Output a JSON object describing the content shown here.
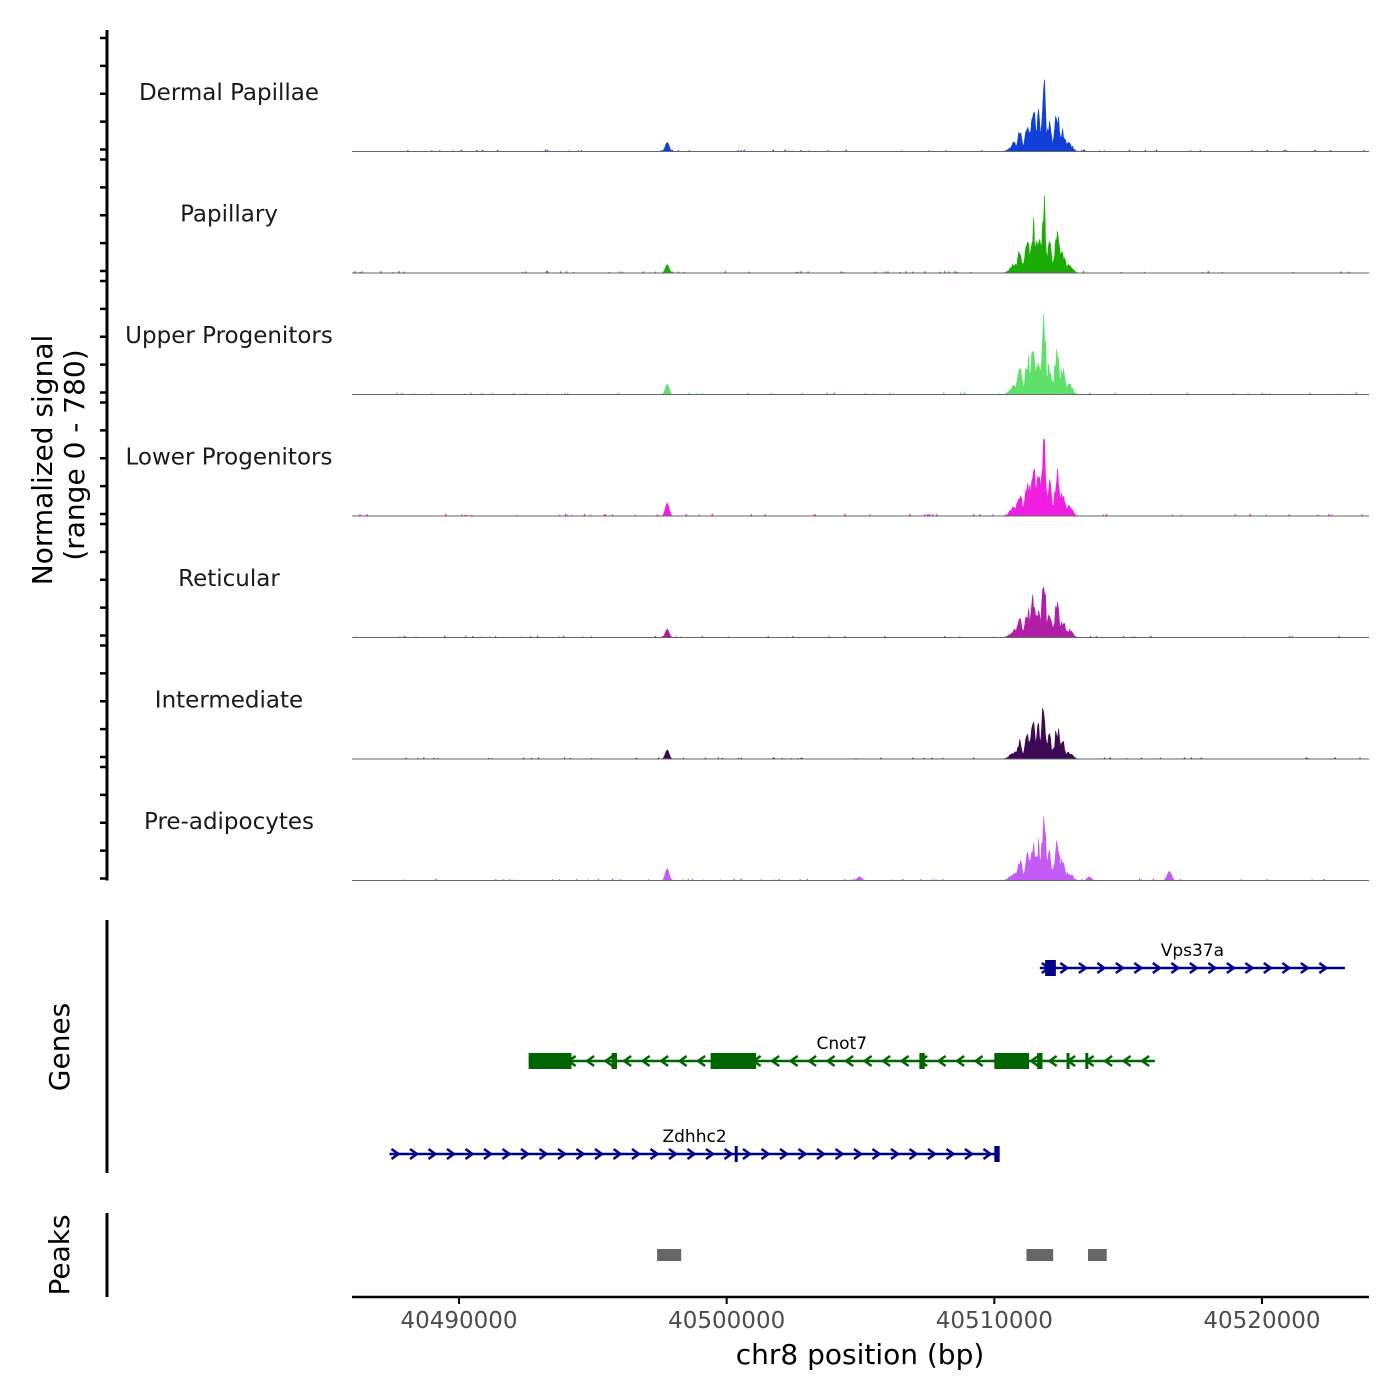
{
  "chart_data": {
    "type": "genome-coverage",
    "ylabel_line1": "Normalized signal",
    "ylabel_line2": "(range 0 - 780)",
    "ylim": [
      0,
      780
    ],
    "xlabel": "chr8 position (bp)",
    "xlim": [
      40486000,
      40524000
    ],
    "x_ticks": [
      40490000,
      40500000,
      40510000,
      40520000
    ],
    "x_tick_labels": [
      "40490000",
      "40500000",
      "40510000",
      "40520000"
    ],
    "tracks": [
      {
        "name": "Dermal Papillae",
        "color": "#0f3fd6",
        "scale": 0.8,
        "secondary": 0.1
      },
      {
        "name": "Papillary",
        "color": "#1aab05",
        "scale": 0.88,
        "secondary": 0.09
      },
      {
        "name": "Upper Progenitors",
        "color": "#5fe06a",
        "scale": 0.95,
        "secondary": 0.11
      },
      {
        "name": "Lower Progenitors",
        "color": "#f01ee0",
        "scale": 0.95,
        "secondary": 0.14
      },
      {
        "name": "Reticular",
        "color": "#b01ea8",
        "scale": 0.7,
        "secondary": 0.09
      },
      {
        "name": "Intermediate",
        "color": "#3c0a55",
        "scale": 0.66,
        "secondary": 0.1
      },
      {
        "name": "Pre-adipocytes",
        "color": "#c35cf5",
        "scale": 0.78,
        "secondary": 0.13
      }
    ],
    "peak_profile": [
      {
        "pos": 40511000,
        "h": 0.3,
        "w": 90
      },
      {
        "pos": 40511300,
        "h": 0.45,
        "w": 90
      },
      {
        "pos": 40511500,
        "h": 0.65,
        "w": 80
      },
      {
        "pos": 40511700,
        "h": 0.55,
        "w": 80
      },
      {
        "pos": 40511900,
        "h": 1.0,
        "w": 70
      },
      {
        "pos": 40512100,
        "h": 0.4,
        "w": 90
      },
      {
        "pos": 40512400,
        "h": 0.55,
        "w": 90
      },
      {
        "pos": 40512600,
        "h": 0.3,
        "w": 100
      },
      {
        "pos": 40512850,
        "h": 0.12,
        "w": 120
      },
      {
        "pos": 40510800,
        "h": 0.12,
        "w": 150
      }
    ],
    "secondary_peak_pos": 40497800,
    "extra_peaks": [
      {
        "track": "Pre-adipocytes",
        "pos": 40516600,
        "h": 0.1
      },
      {
        "track": "Pre-adipocytes",
        "pos": 40505000,
        "h": 0.04
      },
      {
        "track": "Pre-adipocytes",
        "pos": 40513600,
        "h": 0.04
      }
    ],
    "genes_track_label": "Genes",
    "genes": [
      {
        "name": "Vps37a",
        "strand": "+",
        "start": 40511700,
        "end": 40523100,
        "row": 0,
        "color": "#00008b",
        "exons": [
          [
            40511900,
            40512300
          ]
        ]
      },
      {
        "name": "Cnot7",
        "strand": "-",
        "start": 40492600,
        "end": 40516000,
        "row": 1,
        "color": "#006400",
        "exons": [
          [
            40492600,
            40494200
          ],
          [
            40495700,
            40495900
          ],
          [
            40499400,
            40501100
          ],
          [
            40507200,
            40507400
          ],
          [
            40510000,
            40511300
          ],
          [
            40511600,
            40511800
          ],
          [
            40512700,
            40512750
          ],
          [
            40513400,
            40513450
          ]
        ]
      },
      {
        "name": "Zdhhc2",
        "strand": "+",
        "start": 40487400,
        "end": 40510200,
        "row": 2,
        "color": "#00008b",
        "exons": [
          [
            40510000,
            40510200
          ],
          [
            40500300,
            40500320
          ]
        ]
      }
    ],
    "peaks_track_label": "Peaks",
    "peak_regions": [
      [
        40497400,
        40498300
      ],
      [
        40511200,
        40512200
      ],
      [
        40513500,
        40514200
      ]
    ],
    "peak_region_color": "#666666"
  }
}
